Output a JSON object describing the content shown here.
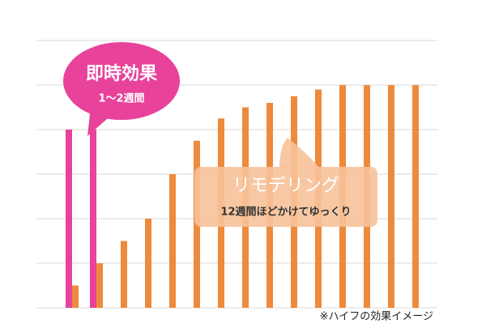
{
  "chart_data": {
    "type": "bar",
    "categories": [
      null,
      null,
      null,
      null,
      null,
      null,
      null,
      null,
      null,
      null,
      null,
      null,
      null,
      null,
      null
    ],
    "series": [
      {
        "color": "#e8429a",
        "values": [
          4,
          4,
          null,
          null,
          null,
          null,
          null,
          null,
          null,
          null,
          null,
          null,
          null,
          null,
          null
        ]
      },
      {
        "color": "#ee8a3c",
        "values": [
          0.5,
          1,
          1.5,
          2,
          3,
          3.75,
          4.25,
          4.5,
          4.6,
          4.75,
          4.9,
          5,
          5,
          5,
          5
        ]
      }
    ],
    "ylim": [
      0,
      6
    ],
    "yticks": [
      0,
      1,
      2,
      3,
      4,
      5,
      6
    ],
    "grid": true,
    "annotations": {
      "effect_title": "即時効果",
      "effect_period": "1〜2週間",
      "remodel_title": "リモデリング",
      "remodel_period": "12週間ほどかけてゆっくり",
      "note": "※ハイフの効果イメージ"
    }
  }
}
